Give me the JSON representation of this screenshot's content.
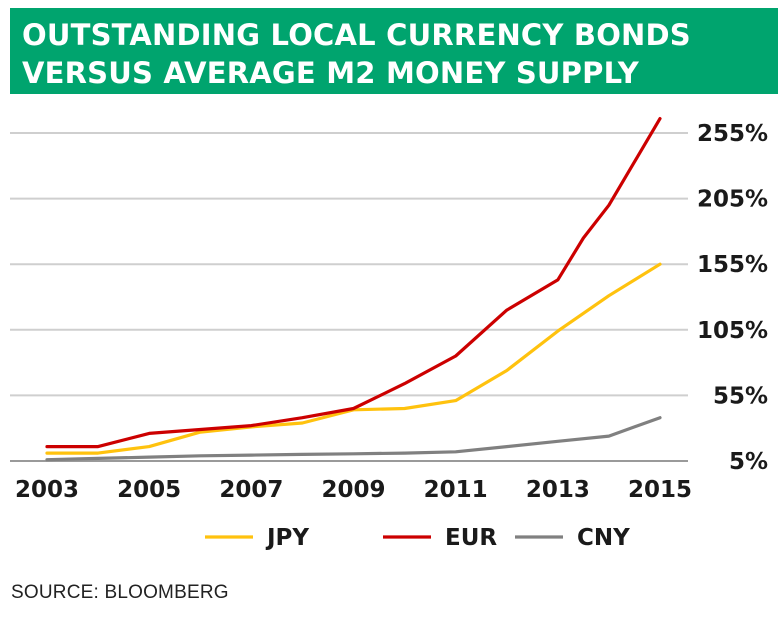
{
  "title": {
    "line1": "OUTSTANDING LOCAL CURRENCY BONDS",
    "line2": "VERSUS AVERAGE M2 MONEY SUPPLY",
    "background": "#00a46e"
  },
  "source": "SOURCE: BLOOMBERG",
  "chart_data": {
    "type": "line",
    "title": "OUTSTANDING LOCAL CURRENCY BONDS VERSUS AVERAGE M2 MONEY SUPPLY",
    "xlabel": "",
    "ylabel": "",
    "xlim": [
      2003,
      2015
    ],
    "ylim": [
      5,
      255
    ],
    "x_ticks": [
      2003,
      2005,
      2007,
      2009,
      2011,
      2013,
      2015
    ],
    "x_tick_labels": [
      "2003",
      "2005",
      "2007",
      "2009",
      "2011",
      "2013",
      "2015"
    ],
    "y_ticks": [
      5,
      55,
      105,
      155,
      205,
      255
    ],
    "y_tick_labels": [
      "5%",
      "55%",
      "105%",
      "155%",
      "205%",
      "255%"
    ],
    "y_axis_position": "right",
    "grid": true,
    "legend_position": "bottom",
    "series": [
      {
        "name": "JPY",
        "color": "#ffc20e",
        "x": [
          2003,
          2004,
          2005,
          2006,
          2007,
          2008,
          2009,
          2010,
          2011,
          2012,
          2013,
          2014,
          2015
        ],
        "values": [
          11,
          11,
          16,
          27,
          31,
          34,
          44,
          45,
          51,
          74,
          104,
          131,
          155
        ]
      },
      {
        "name": "EUR",
        "color": "#cc0000",
        "x": [
          2003,
          2004,
          2005,
          2006,
          2007,
          2008,
          2009,
          2010,
          2011,
          2012,
          2013,
          2013.5,
          2014,
          2015
        ],
        "values": [
          16,
          16,
          26,
          29,
          32,
          38,
          45,
          64,
          85,
          120,
          143,
          175,
          200,
          266
        ]
      },
      {
        "name": "CNY",
        "color": "#808080",
        "x": [
          2003,
          2004,
          2005,
          2006,
          2007,
          2008,
          2009,
          2010,
          2011,
          2012,
          2013,
          2014,
          2015
        ],
        "values": [
          6,
          7,
          8,
          9,
          9.5,
          10,
          10.5,
          11,
          12,
          16,
          20,
          24,
          38
        ]
      }
    ]
  }
}
